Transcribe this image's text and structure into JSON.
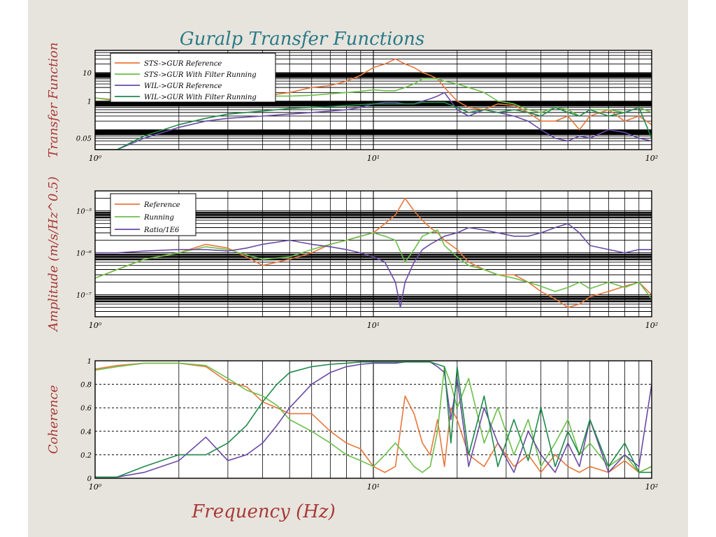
{
  "figure": {
    "title": "Guralp Transfer Functions",
    "xlabel": "Frequency (Hz)",
    "colors": {
      "background": "#e7e4dd",
      "title": "#2a7a86",
      "labels": "#a83a38",
      "orange": "#e8773a",
      "light_green": "#6cbf4a",
      "purple": "#6a4aa6",
      "dark_green": "#1e8a4a"
    }
  },
  "chart_data": [
    {
      "type": "line",
      "ylabel": "Transfer Function",
      "xscale": "log",
      "yscale": "log",
      "xlim": [
        1,
        100
      ],
      "ylim": [
        0.02,
        60
      ],
      "xticks": [
        1,
        10,
        100
      ],
      "xtick_labels": [
        "10⁰",
        "10¹",
        "10²"
      ],
      "yticks": [
        10,
        1,
        0.05
      ],
      "ytick_labels": [
        "10",
        "1",
        "0.05"
      ],
      "grid": true,
      "legend_position": "top-left",
      "series": [
        {
          "name": "STS->GUR Reference",
          "color": "#e8773a",
          "x": [
            1,
            1.2,
            1.5,
            2,
            2.5,
            3,
            4,
            5,
            6,
            7,
            8,
            9,
            10,
            11,
            12,
            13,
            14,
            15,
            16,
            17,
            18,
            20,
            22,
            25,
            28,
            32,
            36,
            40,
            45,
            50,
            55,
            60,
            70,
            80,
            90,
            100
          ],
          "y": [
            1.3,
            1.1,
            1.3,
            1.4,
            1.3,
            1.5,
            1.5,
            2,
            3,
            3.5,
            5,
            8,
            15,
            20,
            30,
            20,
            15,
            10,
            8,
            6,
            3,
            1,
            0.6,
            0.5,
            0.8,
            0.7,
            0.4,
            0.2,
            0.2,
            0.3,
            0.1,
            0.3,
            0.5,
            0.2,
            0.3,
            0.15
          ]
        },
        {
          "name": "STS->GUR With Filter Running",
          "color": "#6cbf4a",
          "x": [
            1,
            1.2,
            1.5,
            2,
            2.5,
            3,
            4,
            5,
            6,
            7,
            8,
            9,
            10,
            11,
            12,
            13,
            14,
            15,
            16,
            17,
            18,
            20,
            22,
            25,
            28,
            32,
            36,
            40,
            45,
            50,
            55,
            60,
            70,
            80,
            90,
            100
          ],
          "y": [
            1.3,
            1.0,
            1.0,
            1.3,
            1.5,
            1.8,
            1.5,
            1.5,
            1.6,
            1.8,
            2,
            2.2,
            2.5,
            2.3,
            2.3,
            3,
            4,
            6,
            6,
            6,
            5,
            4,
            3,
            2,
            1,
            0.8,
            0.5,
            0.4,
            0.6,
            0.5,
            0.3,
            0.5,
            0.5,
            0.4,
            0.6,
            0.4
          ]
        },
        {
          "name": "WIL->GUR Reference",
          "color": "#6a4aa6",
          "x": [
            1,
            1.2,
            1.5,
            2,
            2.5,
            3,
            4,
            5,
            6,
            7,
            8,
            9,
            10,
            11,
            12,
            13,
            14,
            15,
            16,
            17,
            18,
            20,
            22,
            25,
            28,
            32,
            36,
            40,
            45,
            50,
            55,
            60,
            70,
            80,
            90,
            100
          ],
          "y": [
            0.01,
            0.02,
            0.05,
            0.12,
            0.2,
            0.25,
            0.3,
            0.35,
            0.4,
            0.45,
            0.5,
            0.6,
            0.8,
            0.9,
            0.9,
            0.8,
            0.8,
            1,
            1.2,
            1.5,
            2,
            0.5,
            0.3,
            0.5,
            0.4,
            0.3,
            0.2,
            0.1,
            0.05,
            0.04,
            0.06,
            0.05,
            0.1,
            0.08,
            0.05,
            0.04
          ]
        },
        {
          "name": "WIL->GUR With Filter Running",
          "color": "#1e8a4a",
          "x": [
            1,
            1.2,
            1.5,
            2,
            2.5,
            3,
            4,
            5,
            6,
            7,
            8,
            9,
            10,
            11,
            12,
            13,
            14,
            15,
            16,
            17,
            18,
            20,
            22,
            25,
            28,
            32,
            36,
            40,
            45,
            50,
            55,
            60,
            70,
            80,
            90,
            100
          ],
          "y": [
            0.01,
            0.02,
            0.06,
            0.15,
            0.25,
            0.35,
            0.45,
            0.55,
            0.6,
            0.65,
            0.7,
            0.75,
            0.8,
            0.8,
            0.8,
            0.8,
            0.8,
            0.9,
            0.9,
            0.9,
            0.9,
            0.6,
            0.4,
            0.5,
            0.4,
            0.5,
            0.4,
            0.3,
            0.6,
            0.4,
            0.3,
            0.5,
            0.3,
            0.4,
            0.6,
            0.05
          ]
        }
      ]
    },
    {
      "type": "line",
      "ylabel": "Amplitude (m/s/Hz^0.5)",
      "xscale": "log",
      "yscale": "log",
      "xlim": [
        1,
        100
      ],
      "ylim": [
        3e-08,
        3e-05
      ],
      "xticks": [
        1,
        10,
        100
      ],
      "xtick_labels": [
        "10⁰",
        "10¹",
        "10²"
      ],
      "yticks": [
        1e-05,
        1e-06,
        1e-07
      ],
      "ytick_labels": [
        "10⁻⁵",
        "10⁻⁶",
        "10⁻⁷"
      ],
      "grid": true,
      "legend_position": "top-left",
      "series": [
        {
          "name": "Reference",
          "color": "#e8773a",
          "x": [
            1,
            1.2,
            1.5,
            2,
            2.5,
            3,
            3.5,
            4,
            5,
            6,
            7,
            8,
            9,
            10,
            11,
            12,
            13,
            14,
            15,
            16,
            17,
            18,
            20,
            22,
            25,
            28,
            32,
            36,
            40,
            45,
            50,
            55,
            60,
            70,
            80,
            90,
            100
          ],
          "y": [
            2.5e-07,
            4e-07,
            7e-07,
            1e-06,
            1.6e-06,
            1.3e-06,
            8e-07,
            5e-07,
            7e-07,
            1e-06,
            1.6e-06,
            2e-06,
            2.5e-06,
            3e-06,
            5e-06,
            8e-06,
            2e-05,
            1e-05,
            6e-06,
            4e-06,
            3e-06,
            2e-06,
            1.2e-06,
            6e-07,
            4e-07,
            3e-07,
            3e-07,
            2e-07,
            1.2e-07,
            8e-08,
            5e-08,
            6e-08,
            9e-08,
            1.2e-07,
            1.6e-07,
            2e-07,
            1e-07
          ]
        },
        {
          "name": "Running",
          "color": "#6cbf4a",
          "x": [
            1,
            1.2,
            1.5,
            2,
            2.5,
            3,
            3.5,
            4,
            5,
            6,
            7,
            8,
            9,
            10,
            11,
            12,
            13,
            14,
            15,
            16,
            17,
            18,
            20,
            22,
            25,
            28,
            32,
            36,
            40,
            45,
            50,
            55,
            60,
            70,
            80,
            90,
            100
          ],
          "y": [
            2.5e-07,
            4e-07,
            7e-07,
            1e-06,
            1.4e-06,
            1.2e-06,
            9e-07,
            7e-07,
            8e-07,
            1.2e-06,
            1.6e-06,
            2e-06,
            2.5e-06,
            3e-06,
            2.5e-06,
            2e-06,
            6e-07,
            1.2e-06,
            2.5e-06,
            3e-06,
            3.5e-06,
            1.5e-06,
            8e-07,
            5e-07,
            4e-07,
            3e-07,
            2.5e-07,
            2e-07,
            1.6e-07,
            1.2e-07,
            1.5e-07,
            2e-07,
            1.4e-07,
            2e-07,
            1.5e-07,
            2e-07,
            8e-08
          ]
        },
        {
          "name": "Ratio/1E6",
          "color": "#6a4aa6",
          "x": [
            1,
            1.2,
            1.5,
            2,
            2.5,
            3,
            3.5,
            4,
            5,
            6,
            7,
            8,
            9,
            10,
            11,
            12,
            12.5,
            13,
            14,
            15,
            16,
            17,
            18,
            20,
            22,
            25,
            28,
            32,
            36,
            40,
            45,
            50,
            55,
            60,
            70,
            80,
            90,
            100
          ],
          "y": [
            1e-06,
            1e-06,
            1.1e-06,
            1.2e-06,
            1.2e-06,
            1.1e-06,
            1.3e-06,
            1.6e-06,
            2e-06,
            1.6e-06,
            1.4e-06,
            1.2e-06,
            1e-06,
            8e-07,
            6e-07,
            2e-07,
            5e-08,
            2e-07,
            6e-07,
            1.2e-06,
            1.6e-06,
            2e-06,
            2.5e-06,
            3e-06,
            4e-06,
            3.5e-06,
            3e-06,
            2.5e-06,
            2.5e-06,
            3e-06,
            4e-06,
            5e-06,
            3e-06,
            1.5e-06,
            1.2e-06,
            1e-06,
            1.2e-06,
            1.2e-06
          ]
        }
      ]
    },
    {
      "type": "line",
      "ylabel": "Coherence",
      "xscale": "log",
      "yscale": "linear",
      "xlim": [
        1,
        100
      ],
      "ylim": [
        0,
        1
      ],
      "xticks": [
        1,
        10,
        100
      ],
      "xtick_labels": [
        "10⁰",
        "10¹",
        "10²"
      ],
      "yticks": [
        0,
        0.2,
        0.4,
        0.6,
        0.8,
        1
      ],
      "ytick_labels": [
        "0",
        "0.2",
        "0.4",
        "0.6",
        "0.8",
        "1"
      ],
      "grid": true,
      "series": [
        {
          "name": "STS->GUR Reference",
          "color": "#e8773a",
          "x": [
            1,
            1.2,
            1.5,
            2,
            2.5,
            3,
            3.5,
            4,
            4.5,
            5,
            6,
            7,
            8,
            9,
            10,
            11,
            12,
            13,
            14,
            15,
            16,
            17,
            18,
            19,
            20,
            22,
            25,
            28,
            32,
            36,
            40,
            45,
            50,
            55,
            60,
            70,
            80,
            90,
            100
          ],
          "y": [
            0.93,
            0.96,
            0.98,
            0.98,
            0.95,
            0.82,
            0.78,
            0.65,
            0.6,
            0.55,
            0.55,
            0.4,
            0.3,
            0.25,
            0.1,
            0.05,
            0.1,
            0.7,
            0.55,
            0.3,
            0.2,
            0.5,
            0.1,
            0.6,
            0.5,
            0.2,
            0.1,
            0.3,
            0.1,
            0.2,
            0.05,
            0.2,
            0.1,
            0.05,
            0.1,
            0.05,
            0.15,
            0.05,
            0.1
          ]
        },
        {
          "name": "STS->GUR With Filter Running",
          "color": "#6cbf4a",
          "x": [
            1,
            1.2,
            1.5,
            2,
            2.5,
            3,
            3.5,
            4,
            4.5,
            5,
            6,
            7,
            8,
            9,
            10,
            11,
            12,
            13,
            14,
            15,
            16,
            17,
            18,
            19,
            20,
            22,
            25,
            28,
            32,
            36,
            40,
            45,
            50,
            55,
            60,
            70,
            80,
            90,
            100
          ],
          "y": [
            0.92,
            0.95,
            0.98,
            0.98,
            0.96,
            0.85,
            0.75,
            0.7,
            0.62,
            0.5,
            0.4,
            0.3,
            0.2,
            0.15,
            0.1,
            0.2,
            0.3,
            0.2,
            0.1,
            0.05,
            0.1,
            0.4,
            0.95,
            0.8,
            0.6,
            0.85,
            0.3,
            0.6,
            0.2,
            0.5,
            0.1,
            0.3,
            0.5,
            0.2,
            0.3,
            0.1,
            0.2,
            0.05,
            0.1
          ]
        },
        {
          "name": "WIL->GUR Reference",
          "color": "#6a4aa6",
          "x": [
            1,
            1.2,
            1.5,
            2,
            2.5,
            3,
            3.5,
            4,
            4.5,
            5,
            6,
            7,
            8,
            9,
            10,
            11,
            12,
            13,
            14,
            15,
            16,
            17,
            18,
            19,
            20,
            22,
            25,
            28,
            32,
            36,
            40,
            45,
            50,
            55,
            60,
            70,
            80,
            90,
            100
          ],
          "y": [
            0.01,
            0.01,
            0.05,
            0.15,
            0.35,
            0.15,
            0.2,
            0.3,
            0.45,
            0.6,
            0.8,
            0.9,
            0.95,
            0.97,
            0.98,
            0.98,
            0.98,
            0.99,
            0.99,
            0.99,
            0.99,
            0.95,
            0.9,
            0.5,
            0.85,
            0.1,
            0.6,
            0.3,
            0.05,
            0.4,
            0.2,
            0.05,
            0.3,
            0.1,
            0.5,
            0.05,
            0.2,
            0.1,
            0.8
          ]
        },
        {
          "name": "WIL->GUR With Filter Running",
          "color": "#1e8a4a",
          "x": [
            1,
            1.2,
            1.5,
            2,
            2.5,
            3,
            3.5,
            4,
            4.5,
            5,
            6,
            7,
            8,
            9,
            10,
            11,
            12,
            13,
            14,
            15,
            16,
            17,
            18,
            19,
            20,
            22,
            25,
            28,
            32,
            36,
            40,
            45,
            50,
            55,
            60,
            70,
            80,
            90,
            100
          ],
          "y": [
            0.01,
            0.01,
            0.1,
            0.2,
            0.2,
            0.3,
            0.45,
            0.65,
            0.8,
            0.9,
            0.95,
            0.97,
            0.98,
            0.99,
            0.99,
            0.99,
            0.99,
            0.99,
            0.99,
            0.99,
            0.99,
            0.97,
            0.95,
            0.3,
            0.95,
            0.2,
            0.7,
            0.1,
            0.5,
            0.15,
            0.6,
            0.1,
            0.4,
            0.2,
            0.5,
            0.1,
            0.3,
            0.05,
            0.05
          ]
        }
      ]
    }
  ]
}
